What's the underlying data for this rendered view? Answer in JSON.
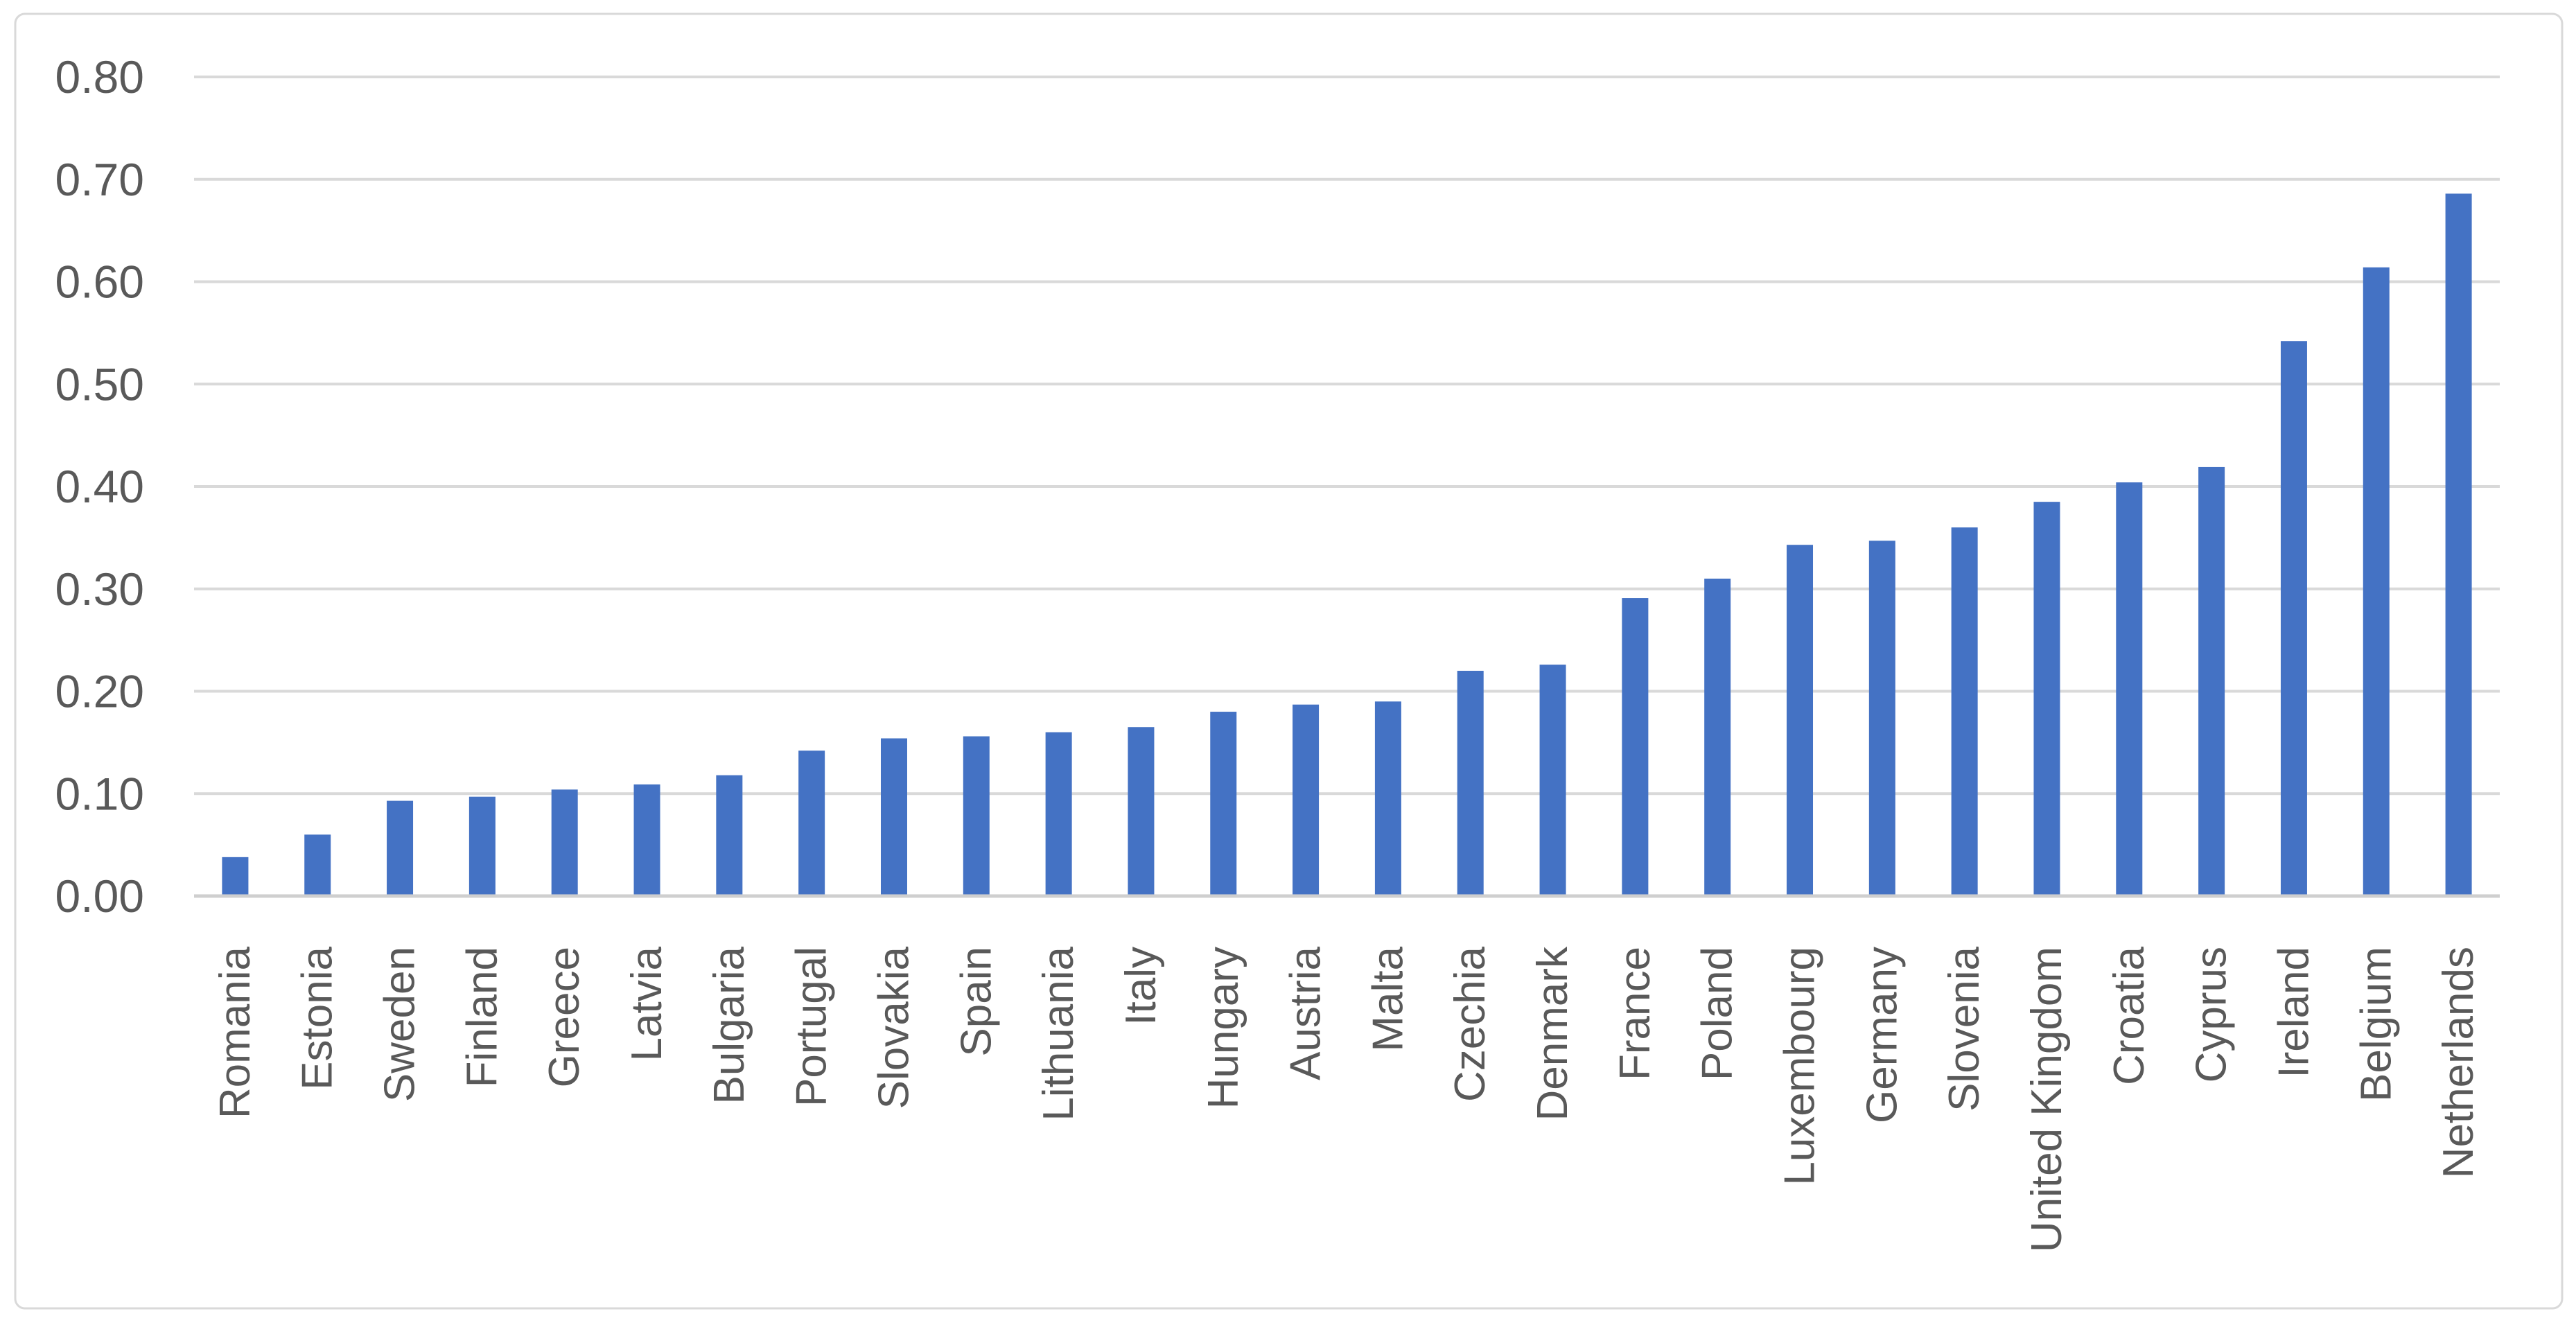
{
  "chart_data": {
    "type": "bar",
    "title": "",
    "xlabel": "",
    "ylabel": "",
    "categories": [
      "Romania",
      "Estonia",
      "Sweden",
      "Finland",
      "Greece",
      "Latvia",
      "Bulgaria",
      "Portugal",
      "Slovakia",
      "Spain",
      "Lithuania",
      "Italy",
      "Hungary",
      "Austria",
      "Malta",
      "Czechia",
      "Denmark",
      "France",
      "Poland",
      "Luxembourg",
      "Germany",
      "Slovenia",
      "United Kingdom",
      "Croatia",
      "Cyprus",
      "Ireland",
      "Belgium",
      "Netherlands"
    ],
    "values": [
      0.038,
      0.06,
      0.093,
      0.097,
      0.104,
      0.109,
      0.118,
      0.142,
      0.154,
      0.156,
      0.16,
      0.165,
      0.18,
      0.187,
      0.19,
      0.22,
      0.226,
      0.291,
      0.31,
      0.343,
      0.347,
      0.36,
      0.385,
      0.404,
      0.419,
      0.542,
      0.614,
      0.686
    ],
    "ylim": [
      0,
      0.8
    ],
    "ytick_step": 0.1,
    "ytick_labels": [
      "0.00",
      "0.10",
      "0.20",
      "0.30",
      "0.40",
      "0.50",
      "0.60",
      "0.70",
      "0.80"
    ],
    "grid": true,
    "legend_position": "none",
    "x_label_rotation_degrees": -90,
    "colors": {
      "bar": "#4472C4",
      "gridline": "#D9D9D9",
      "axis_line": "#CFCFCF",
      "tick_text": "#595959",
      "category_text": "#595959",
      "chart_border": "#D9D9D9",
      "background": "#FFFFFF"
    }
  }
}
